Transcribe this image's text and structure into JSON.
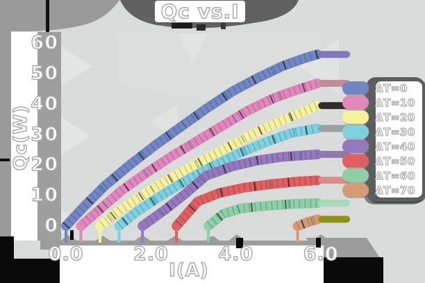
{
  "title": "Qc vs.I",
  "chart_data": {
    "type": "line",
    "title": "Qc vs.I",
    "xlabel": "I(A)",
    "ylabel": "Qc(W)",
    "xlim": [
      0,
      6.6
    ],
    "ylim": [
      0,
      60
    ],
    "grid": false,
    "legend_position": "right",
    "x_ticks": [
      {
        "value": 0,
        "label": "0.0"
      },
      {
        "value": 2,
        "label": "2.0"
      },
      {
        "value": 4,
        "label": "4.0"
      },
      {
        "value": 6,
        "label": "6.0"
      }
    ],
    "y_ticks": [
      {
        "value": 60,
        "label": "60"
      },
      {
        "value": 50,
        "label": "50"
      },
      {
        "value": 40,
        "label": "40"
      },
      {
        "value": 30,
        "label": "30"
      },
      {
        "value": 20,
        "label": "20"
      },
      {
        "value": 10,
        "label": "10"
      },
      {
        "value": 0,
        "label": "0"
      }
    ],
    "series": [
      {
        "name": "dT0",
        "label": "ΔT=0",
        "color": "#7286c2",
        "cap_color": "#8278bb",
        "x": [
          0,
          0.4,
          0.9,
          1.5,
          2.1,
          2.7,
          3.3,
          3.9,
          4.5,
          5.1,
          5.6,
          5.92
        ],
        "y": [
          0,
          6,
          13,
          20,
          26.5,
          32.5,
          38.5,
          44,
          48.5,
          52.5,
          55,
          56.3
        ]
      },
      {
        "name": "dT10",
        "label": "ΔT=10",
        "color": "#e287bb",
        "cap_color": "#c18d92",
        "x": [
          0.35,
          0.8,
          1.3,
          1.9,
          2.5,
          3.1,
          3.7,
          4.3,
          4.9,
          5.5,
          5.92
        ],
        "y": [
          0,
          5.5,
          11.5,
          17.5,
          23,
          28,
          33,
          38,
          42,
          45,
          46.8
        ]
      },
      {
        "name": "dT20",
        "label": "ΔT=20",
        "color": "#f6f19d",
        "cap_color": "#2e2e2e",
        "x": [
          0.8,
          1.3,
          1.9,
          2.5,
          3.1,
          3.7,
          4.3,
          4.9,
          5.5,
          5.92
        ],
        "y": [
          0,
          5.5,
          11,
          16,
          20.5,
          25,
          29.5,
          33.5,
          37,
          39.5
        ]
      },
      {
        "name": "dT30",
        "label": "ΔT=30",
        "color": "#7fd1e0",
        "cap_color": "#98a2a3",
        "x": [
          1.25,
          1.7,
          2.3,
          2.9,
          3.5,
          4.1,
          4.7,
          5.3,
          5.92
        ],
        "y": [
          0,
          5,
          10.5,
          15.5,
          20,
          24,
          27.5,
          30.5,
          32
        ]
      },
      {
        "name": "dT40",
        "label": "ΔT=40",
        "color": "#9678bd",
        "cap_color": "#8d7cab",
        "x": [
          1.8,
          2.3,
          2.8,
          3.3,
          3.9,
          4.5,
          5.1,
          5.92
        ],
        "y": [
          0,
          5,
          10.5,
          16.5,
          19.5,
          21.5,
          22.7,
          23.5
        ]
      },
      {
        "name": "dT50",
        "label": "ΔT=50",
        "color": "#e05f5f",
        "cap_color": "#da8c8c",
        "x": [
          2.6,
          3.1,
          3.6,
          4.2,
          4.8,
          5.4,
          5.92
        ],
        "y": [
          0,
          8,
          10.8,
          12.6,
          13.7,
          14.5,
          15
        ]
      },
      {
        "name": "dT60",
        "label": "ΔT=60",
        "color": "#8ecfa4",
        "cap_color": "#a8d9bb",
        "x": [
          3.35,
          3.7,
          4.1,
          4.7,
          5.3,
          5.92
        ],
        "y": [
          0,
          4,
          5.7,
          6.6,
          7.2,
          7.5
        ]
      },
      {
        "name": "dT70",
        "label": "ΔT=70",
        "color": "#d59b74",
        "cap_color": "#8f9218",
        "x": [
          5.45,
          5.7,
          5.92
        ],
        "y": [
          0,
          1.3,
          2.2
        ]
      }
    ]
  },
  "style": {
    "background": "#d9dcdb",
    "panel_white": "#ffffff",
    "blob_gray": "#616161",
    "band_gray": "#9c9c9c",
    "corner_black": "#0a0a0a",
    "text_outline": "#a6a6a6"
  }
}
